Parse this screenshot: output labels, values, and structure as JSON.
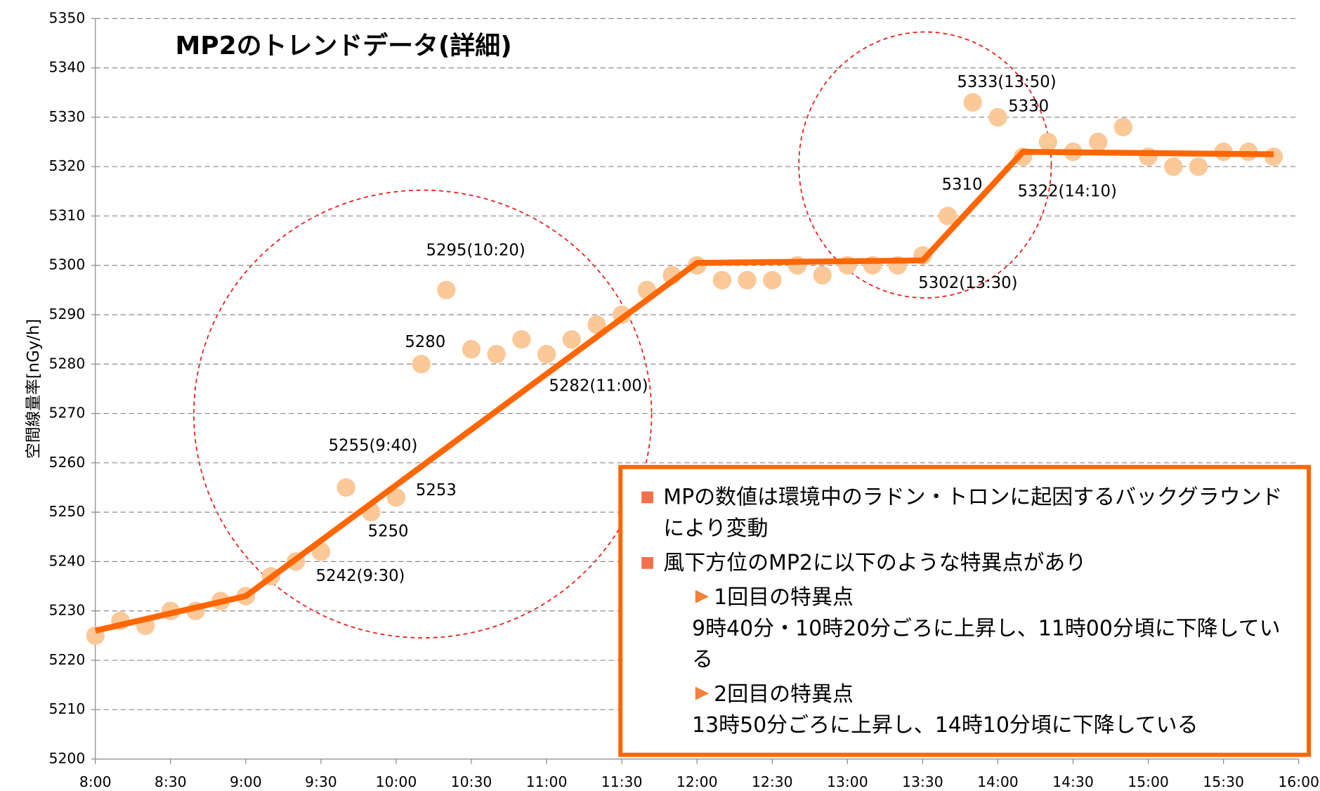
{
  "chart_data": {
    "type": "scatter",
    "title": "MP2のトレンドデータ(詳細)",
    "ylabel": "空間線量率[nGy/h]",
    "color": "#fbc898",
    "x": [
      480,
      490,
      500,
      510,
      520,
      530,
      540,
      550,
      560,
      570,
      580,
      590,
      600,
      610,
      620,
      630,
      640,
      650,
      660,
      670,
      680,
      690,
      700,
      710,
      720,
      730,
      740,
      750,
      760,
      770,
      780,
      790,
      800,
      810,
      820,
      830,
      840,
      850,
      860,
      870,
      880,
      890,
      900,
      910,
      920,
      930,
      940,
      950
    ],
    "values": [
      5225,
      5228,
      5227,
      5230,
      5230,
      5232,
      5233,
      5237,
      5240,
      5242,
      5255,
      5250,
      5253,
      5280,
      5295,
      5283,
      5282,
      5285,
      5282,
      5285,
      5288,
      5290,
      5295,
      5298,
      5300,
      5297,
      5297,
      5297,
      5300,
      5298,
      5300,
      5300,
      5300,
      5302,
      5310,
      5333,
      5330,
      5322,
      5325,
      5323,
      5325,
      5328,
      5322,
      5320,
      5320,
      5323,
      5323,
      5322
    ],
    "trend": {
      "type": "line",
      "color": "#ff6600",
      "x": [
        480,
        540,
        720,
        810,
        850,
        950
      ],
      "values": [
        5226,
        5233,
        5300.5,
        5301,
        5323,
        5322.5
      ]
    },
    "xlim": [
      480,
      960
    ],
    "xticks": [
      {
        "value": 480,
        "label": "8:00"
      },
      {
        "value": 510,
        "label": "8:30"
      },
      {
        "value": 540,
        "label": "9:00"
      },
      {
        "value": 570,
        "label": "9:30"
      },
      {
        "value": 600,
        "label": "10:00"
      },
      {
        "value": 630,
        "label": "10:30"
      },
      {
        "value": 660,
        "label": "11:00"
      },
      {
        "value": 690,
        "label": "11:30"
      },
      {
        "value": 720,
        "label": "12:00"
      },
      {
        "value": 750,
        "label": "12:30"
      },
      {
        "value": 780,
        "label": "13:00"
      },
      {
        "value": 810,
        "label": "13:30"
      },
      {
        "value": 840,
        "label": "14:00"
      },
      {
        "value": 870,
        "label": "14:30"
      },
      {
        "value": 900,
        "label": "15:00"
      },
      {
        "value": 930,
        "label": "15:30"
      },
      {
        "value": 960,
        "label": "16:00"
      }
    ],
    "ylim": [
      5200,
      5350
    ],
    "yticks": [
      5200,
      5210,
      5220,
      5230,
      5240,
      5250,
      5260,
      5270,
      5280,
      5290,
      5300,
      5310,
      5320,
      5330,
      5340,
      5350
    ],
    "grid": true,
    "annotations": [
      "5333(13:50)",
      "5330",
      "5310",
      "5322(14:10)",
      "5302(13:30)",
      "5295(10:20)",
      "5280",
      "5282(11:00)",
      "5255(9:40)",
      "5253",
      "5250",
      "5242(9:30)"
    ],
    "notes": {
      "bullets": [
        "MPの数値は環境中のラドン・トロンに起因するバックグラウンドにより変動",
        "風下方位のMP2に以下のような特異点があり"
      ],
      "points": [
        {
          "heading": "1回目の特異点",
          "text": "9時40分・10時20分ごろに上昇し、11時00分頃に下降している"
        },
        {
          "heading": "2回目の特異点",
          "text": "13時50分ごろに上昇し、14時10分頃に下降している"
        }
      ]
    }
  }
}
